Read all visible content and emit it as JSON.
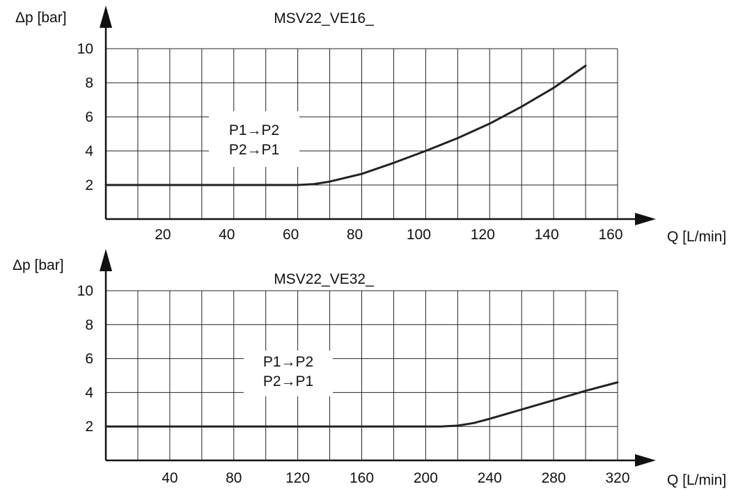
{
  "chart_data": [
    {
      "type": "line",
      "title": "MSV22_VE16_",
      "xlabel": "Q [L/min]",
      "ylabel": "Δp [bar]",
      "xlim": [
        0,
        160
      ],
      "ylim": [
        0,
        10
      ],
      "x_ticks": [
        20,
        40,
        60,
        80,
        100,
        120,
        140,
        160
      ],
      "y_ticks": [
        2,
        4,
        6,
        8,
        10
      ],
      "grid": true,
      "annotation": [
        "P1→P2",
        "P2→P1"
      ],
      "series": [
        {
          "x": [
            0,
            10,
            20,
            30,
            40,
            50,
            60,
            65,
            70,
            80,
            90,
            100,
            110,
            120,
            130,
            140,
            150
          ],
          "y": [
            2,
            2,
            2,
            2,
            2,
            2,
            2,
            2.05,
            2.2,
            2.65,
            3.3,
            4.0,
            4.75,
            5.6,
            6.6,
            7.7,
            9.0
          ]
        }
      ]
    },
    {
      "type": "line",
      "title": "MSV22_VE32_",
      "xlabel": "Q [L/min]",
      "ylabel": "Δp [bar]",
      "xlim": [
        0,
        320
      ],
      "ylim": [
        0,
        10
      ],
      "x_ticks": [
        40,
        80,
        120,
        160,
        200,
        240,
        280,
        320
      ],
      "y_ticks": [
        2,
        4,
        6,
        8,
        10
      ],
      "grid": true,
      "annotation": [
        "P1→P2",
        "P2→P1"
      ],
      "series": [
        {
          "x": [
            0,
            40,
            80,
            120,
            160,
            200,
            210,
            220,
            230,
            240,
            260,
            280,
            300,
            320
          ],
          "y": [
            2,
            2,
            2,
            2,
            2,
            2,
            2,
            2.05,
            2.2,
            2.45,
            3.0,
            3.55,
            4.1,
            4.6
          ]
        }
      ]
    }
  ]
}
